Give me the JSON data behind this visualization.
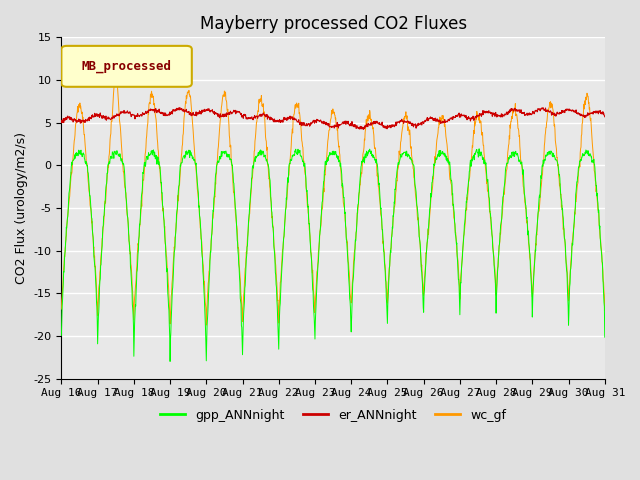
{
  "title": "Mayberry processed CO2 Fluxes",
  "ylabel": "CO2 Flux (urology/m2/s)",
  "ylim": [
    -25,
    15
  ],
  "yticks": [
    -25,
    -20,
    -15,
    -10,
    -5,
    0,
    5,
    10,
    15
  ],
  "x_tick_labels": [
    "Aug 16",
    "Aug 17",
    "Aug 18",
    "Aug 19",
    "Aug 20",
    "Aug 21",
    "Aug 22",
    "Aug 23",
    "Aug 24",
    "Aug 25",
    "Aug 26",
    "Aug 27",
    "Aug 28",
    "Aug 29",
    "Aug 30",
    "Aug 31"
  ],
  "colors": {
    "gpp": "#00ff00",
    "er": "#cc0000",
    "wc": "#ff9900"
  },
  "legend_label": "MB_processed",
  "legend_text_color": "#880000",
  "legend_box_facecolor": "#ffffcc",
  "legend_box_edgecolor": "#ccaa00",
  "axes_facecolor": "#e8e8e8",
  "fig_facecolor": "#e0e0e0",
  "grid_color": "#ffffff",
  "title_fontsize": 12,
  "axis_fontsize": 9,
  "tick_fontsize": 8,
  "n_days": 15,
  "points_per_day": 96
}
